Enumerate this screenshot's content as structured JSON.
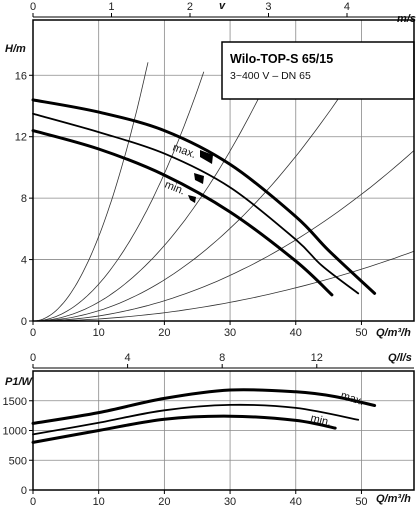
{
  "chart_data": [
    {
      "type": "line",
      "title": "Wilo-TOP-S 65/15",
      "subtitle": "3~400 V – DN 65",
      "xlabel": "Q/m³/h",
      "ylabel": "H/m",
      "top_axis_label": "v",
      "top_axis_unit": "m/s",
      "xlim": [
        0,
        58
      ],
      "ylim": [
        0,
        19.6
      ],
      "xticks": [
        0,
        10,
        20,
        30,
        40,
        50
      ],
      "yticks": [
        0,
        4,
        8,
        12,
        16
      ],
      "top_ticks": [
        0,
        1,
        2,
        3,
        4
      ],
      "top_scale_q_per_ms": 11.95,
      "grid": true,
      "series": [
        {
          "name": "max.",
          "x": [
            0,
            10,
            20,
            30,
            40,
            45,
            52
          ],
          "y": [
            14.4,
            13.6,
            12.4,
            10.2,
            6.8,
            4.6,
            1.8
          ]
        },
        {
          "name": "",
          "x": [
            0,
            10,
            20,
            30,
            40,
            44,
            49.5
          ],
          "y": [
            13.5,
            12.3,
            10.9,
            8.7,
            5.3,
            3.6,
            1.8
          ]
        },
        {
          "name": "min.",
          "x": [
            0,
            10,
            20,
            30,
            40,
            45.5
          ],
          "y": [
            12.4,
            11.2,
            9.5,
            7.1,
            3.9,
            1.7
          ]
        }
      ],
      "system_curves": [
        {
          "k": 0.055,
          "xmax": 17.5
        },
        {
          "k": 0.024,
          "xmax": 26
        },
        {
          "k": 0.0123,
          "xmax": 36.5
        },
        {
          "k": 0.0067,
          "xmax": 49.5
        },
        {
          "k": 0.0033,
          "xmax": 58
        },
        {
          "k": 0.00135,
          "xmax": 58
        }
      ],
      "annotations": [
        "max.",
        "min."
      ],
      "line_color": "#000000",
      "grid_color": "#8a8a8a"
    },
    {
      "type": "line",
      "xlabel": "Q/m³/h",
      "ylabel": "P1/W",
      "top_axis_label": "Q/l/s",
      "xlim": [
        0,
        58
      ],
      "ylim": [
        0,
        2000
      ],
      "xticks": [
        0,
        10,
        20,
        30,
        40,
        50
      ],
      "yticks": [
        0,
        500,
        1000,
        1500
      ],
      "top_ticks": [
        0,
        4,
        8,
        12
      ],
      "top_scale_q_per_ls": 3.6,
      "grid": true,
      "series": [
        {
          "name": "max.",
          "x": [
            0,
            10,
            20,
            30,
            40,
            46,
            52
          ],
          "y": [
            1120,
            1300,
            1540,
            1680,
            1650,
            1570,
            1420
          ]
        },
        {
          "name": "",
          "x": [
            0,
            10,
            20,
            30,
            40,
            49.5
          ],
          "y": [
            935,
            1130,
            1340,
            1430,
            1380,
            1180
          ]
        },
        {
          "name": "min.",
          "x": [
            0,
            10,
            20,
            30,
            40,
            46
          ],
          "y": [
            800,
            1000,
            1190,
            1240,
            1170,
            1040
          ]
        }
      ],
      "annotations": [
        "max.",
        "min."
      ],
      "line_color": "#000000",
      "grid_color": "#8a8a8a"
    }
  ]
}
